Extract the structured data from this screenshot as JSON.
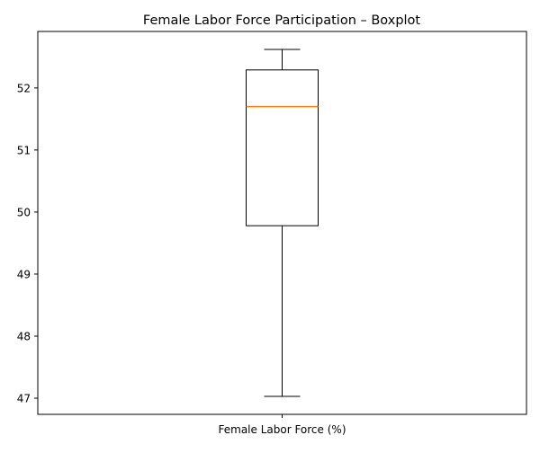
{
  "chart_data": {
    "type": "box",
    "title": "Female Labor Force Participation – Boxplot",
    "categories": [
      "Female Labor Force (%)"
    ],
    "series": [
      {
        "whisker_low": 47.03,
        "q1": 49.78,
        "median": 51.7,
        "q3": 52.29,
        "whisker_high": 52.62
      }
    ],
    "ylim": [
      46.74,
      52.91
    ],
    "yticks": [
      47,
      48,
      49,
      50,
      51,
      52
    ],
    "grid": false,
    "colors": {
      "median": "#ff7f0e",
      "box": "#000000"
    }
  }
}
